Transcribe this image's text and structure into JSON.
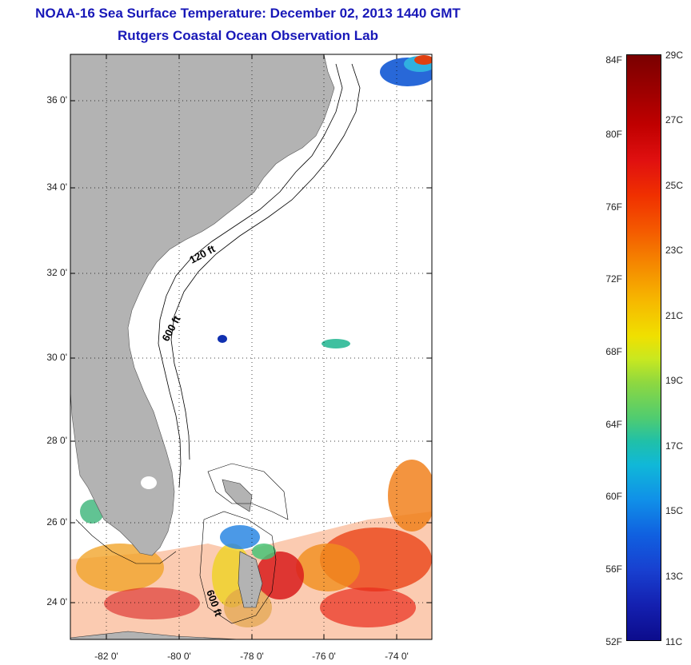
{
  "title_line1": "NOAA-16 Sea Surface Temperature:  December 02, 2013 1440 GMT",
  "title_line2": "Rutgers Coastal Ocean Observation Lab",
  "lat_labels": [
    "36 0'",
    "34 0'",
    "32 0'",
    "30 0'",
    "28 0'",
    "26 0'",
    "24 0'"
  ],
  "lon_labels": [
    "-82 0'",
    "-80 0'",
    "-78 0'",
    "-76 0'",
    "-74 0'"
  ],
  "isobath_labels": [
    "120 ft",
    "600 ft",
    "600 ft"
  ],
  "colorbar": {
    "fahrenheit": [
      "84F",
      "80F",
      "76F",
      "72F",
      "68F",
      "64F",
      "60F",
      "56F",
      "52F"
    ],
    "celsius": [
      "29C",
      "27C",
      "25C",
      "23C",
      "21C",
      "19C",
      "17C",
      "15C",
      "13C",
      "11C"
    ],
    "range_c": [
      11,
      29
    ],
    "range_f": [
      52,
      84
    ]
  },
  "map": {
    "lat_range": [
      23,
      37
    ],
    "lon_range": [
      -83,
      -73
    ],
    "land_color": "#b3b3b3",
    "grid": "dotted"
  }
}
